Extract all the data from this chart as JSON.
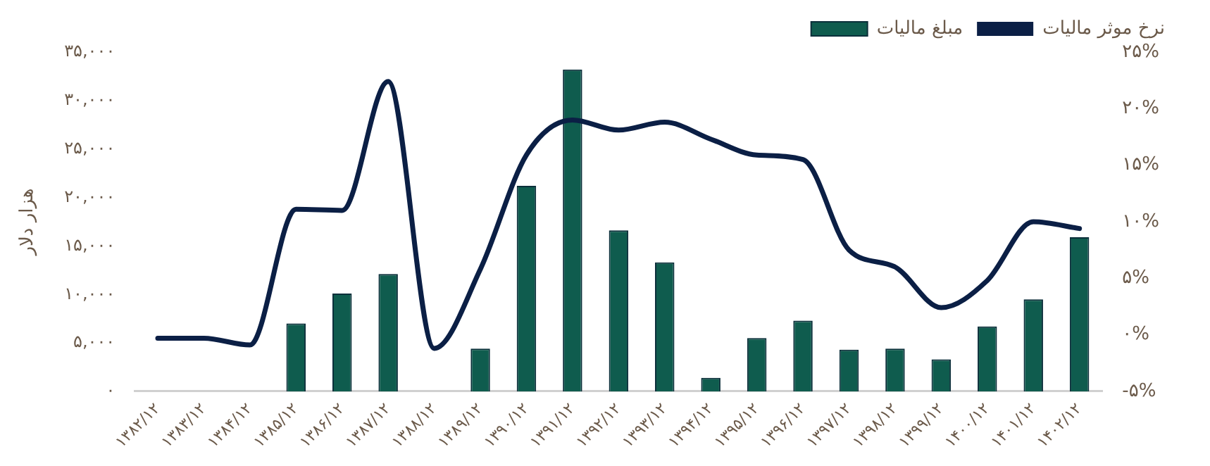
{
  "chart_data": {
    "type": "bar",
    "categories": [
      "۱۳۸۲/۱۲",
      "۱۳۸۳/۱۲",
      "۱۳۸۴/۱۲",
      "۱۳۸۵/۱۲",
      "۱۳۸۶/۱۲",
      "۱۳۸۷/۱۲",
      "۱۳۸۸/۱۲",
      "۱۳۸۹/۱۲",
      "۱۳۹۰/۱۲",
      "۱۳۹۱/۱۲",
      "۱۳۹۲/۱۲",
      "۱۳۹۳/۱۲",
      "۱۳۹۴/۱۲",
      "۱۳۹۵/۱۲",
      "۱۳۹۶/۱۲",
      "۱۳۹۷/۱۲",
      "۱۳۹۸/۱۲",
      "۱۳۹۹/۱۲",
      "۱۴۰۰/۱۲",
      "۱۴۰۱/۱۲",
      "۱۴۰۲/۱۲"
    ],
    "series": [
      {
        "name": "مبلغ مالیات",
        "color": "#0f5c4e",
        "values": [
          0,
          0,
          0,
          7000,
          10100,
          12100,
          0,
          4400,
          21200,
          33200,
          16600,
          13300,
          1400,
          5500,
          7300,
          4300,
          4400,
          3300,
          6700,
          9500,
          15900
        ]
      },
      {
        "name": "نرخ موثر مالیات",
        "type": "line",
        "axis": "y2",
        "color": "#0b1f45",
        "values": [
          -0.3,
          -0.3,
          -0.9,
          11.1,
          11,
          22.4,
          -1.2,
          5.8,
          15.9,
          19,
          18.1,
          18.8,
          17.3,
          15.9,
          15.5,
          7.5,
          6,
          2.4,
          4.8,
          10,
          9.4
        ]
      }
    ],
    "ylabel": "هزار دلار",
    "ylim": [
      0,
      35000
    ],
    "yticks": [
      {
        "value": 0,
        "label": "۰"
      },
      {
        "value": 5000,
        "label": "۵,۰۰۰"
      },
      {
        "value": 10000,
        "label": "۱۰,۰۰۰"
      },
      {
        "value": 15000,
        "label": "۱۵,۰۰۰"
      },
      {
        "value": 20000,
        "label": "۲۰,۰۰۰"
      },
      {
        "value": 25000,
        "label": "۲۵,۰۰۰"
      },
      {
        "value": 30000,
        "label": "۳۰,۰۰۰"
      },
      {
        "value": 35000,
        "label": "۳۵,۰۰۰"
      }
    ],
    "y2lim": [
      -5,
      25
    ],
    "y2ticks": [
      {
        "value": -5,
        "label": "-۵%"
      },
      {
        "value": 0,
        "label": "۰%"
      },
      {
        "value": 5,
        "label": "۵%"
      },
      {
        "value": 10,
        "label": "۱۰%"
      },
      {
        "value": 15,
        "label": "۱۵%"
      },
      {
        "value": 20,
        "label": "۲۰%"
      },
      {
        "value": 25,
        "label": "۲۵%"
      }
    ],
    "legend": "top right",
    "grid": false,
    "marker": "none"
  }
}
